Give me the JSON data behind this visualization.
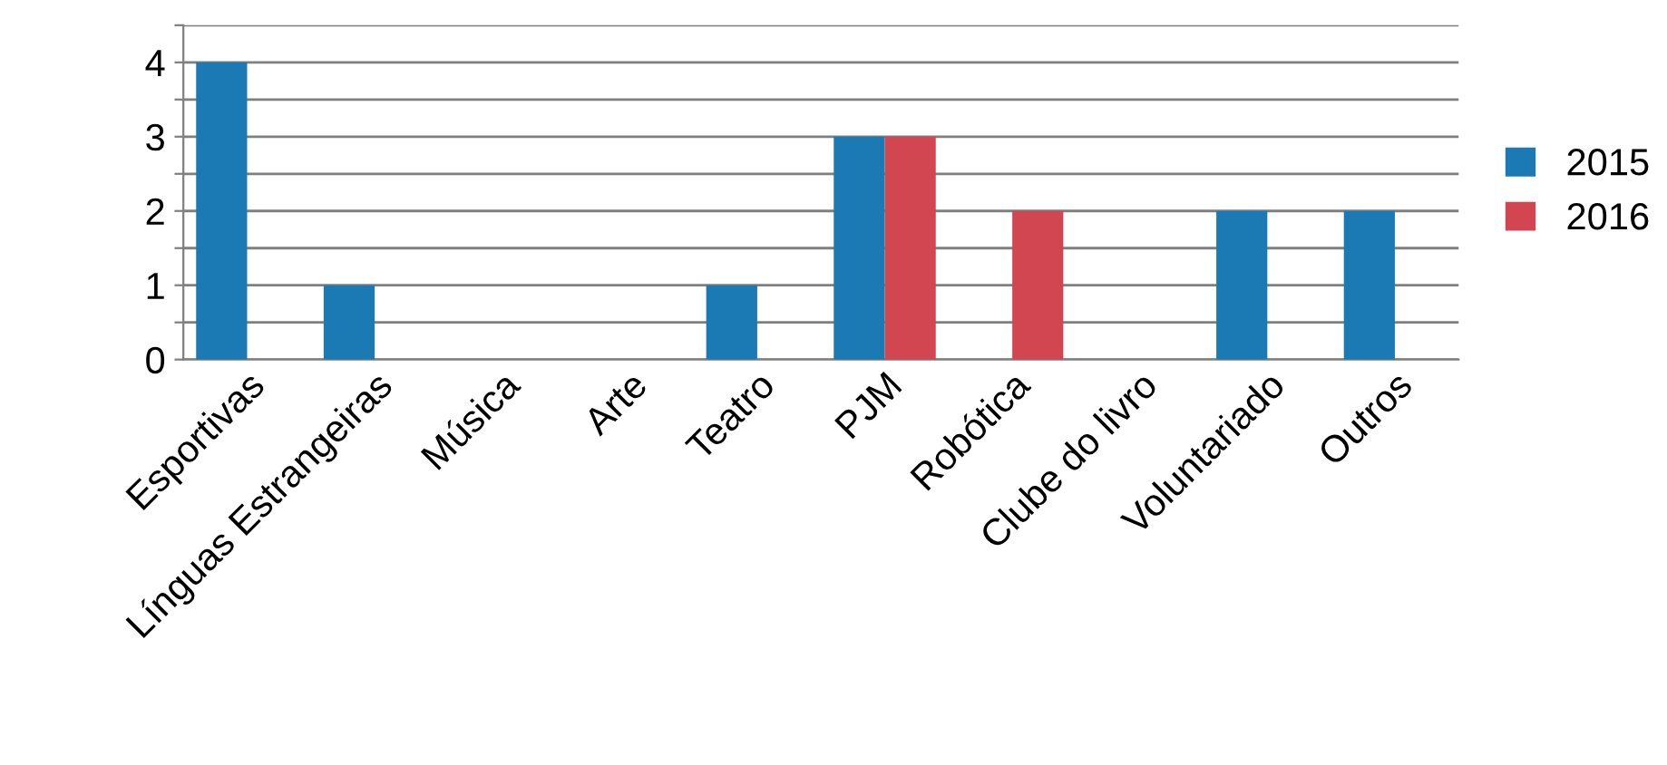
{
  "chart_data": {
    "type": "bar",
    "categories": [
      "Esportivas",
      "Línguas Estrangeiras",
      "Música",
      "Arte",
      "Teatro",
      "PJM",
      "Robótica",
      "Clube do livro",
      "Voluntariado",
      "Outros"
    ],
    "series": [
      {
        "name": "2015",
        "color": "#1b7ab4",
        "values": [
          4,
          1,
          0,
          0,
          1,
          3,
          0,
          0,
          2,
          2
        ]
      },
      {
        "name": "2016",
        "color": "#d24651",
        "values": [
          0,
          0,
          0,
          0,
          0,
          3,
          2,
          0,
          0,
          0
        ]
      }
    ],
    "ylim": [
      0,
      4.5
    ],
    "yticks": [
      0,
      {
        "value": 0.5,
        "label": null
      },
      1,
      {
        "value": 1.5,
        "label": null
      },
      2,
      {
        "value": 2.5,
        "label": null
      },
      3,
      {
        "value": 3.5,
        "label": null
      },
      4,
      {
        "value": 4.5,
        "label": null
      }
    ],
    "grid": "y",
    "legend": "right"
  }
}
